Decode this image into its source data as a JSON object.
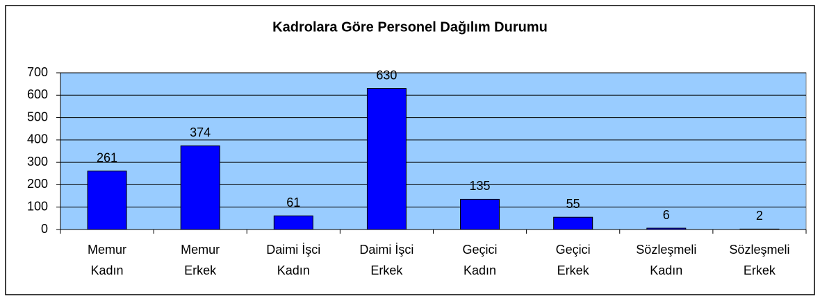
{
  "chart_data": {
    "type": "bar",
    "title": "Kadrolara Göre Personel Dağılım Durumu",
    "categories": [
      "Memur Kadın",
      "Memur Erkek",
      "Daimi İşci Kadın",
      "Daimi İşci Erkek",
      "Geçici Kadın",
      "Geçici Erkek",
      "Sözleşmeli Kadın",
      "Sözleşmeli Erkek"
    ],
    "values": [
      261,
      374,
      61,
      630,
      135,
      55,
      6,
      2
    ],
    "color": "#0000ff",
    "plot_background": "#99ccff",
    "ylim": [
      0,
      700
    ],
    "yticks": [
      0,
      100,
      200,
      300,
      400,
      500,
      600,
      700
    ],
    "grid": true
  }
}
